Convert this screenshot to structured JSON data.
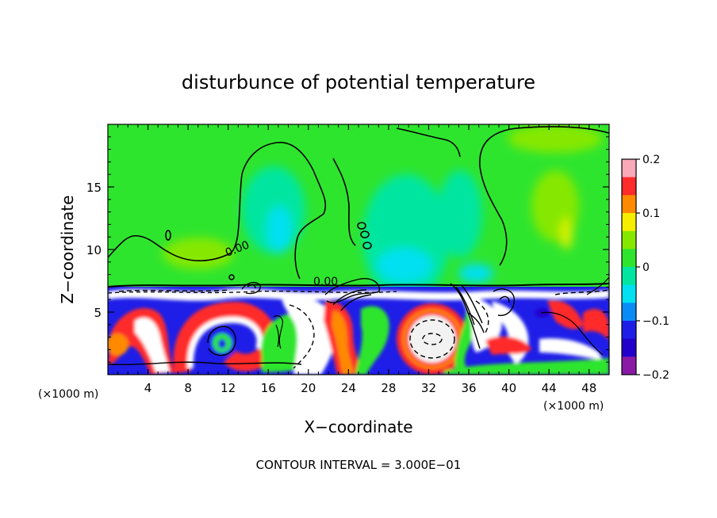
{
  "chart_data": {
    "type": "heatmap",
    "title": "disturbunce of potential temperature",
    "xlabel": "X−coordinate",
    "ylabel": "Z−coordinate",
    "x_unit": "(×1000 m)",
    "x_unit_right": "(×1000 m)",
    "xlim": [
      0,
      50
    ],
    "ylim": [
      0,
      20
    ],
    "x_ticks": [
      4,
      8,
      12,
      16,
      20,
      24,
      28,
      32,
      36,
      40,
      44,
      48
    ],
    "y_ticks": [
      5,
      10,
      15
    ],
    "contour_interval_text": "CONTOUR INTERVAL = 3.000E−01",
    "contour_labels": [
      {
        "text": "0.00",
        "x": 13,
        "z": 10.3
      },
      {
        "text": "0.00",
        "x": 22,
        "z": 7.4
      }
    ],
    "colorbar": {
      "min": -0.2,
      "max": 0.2,
      "tick_values": [
        0.2,
        0.1,
        0,
        -0.1,
        -0.2
      ],
      "tick_labels": [
        "0.2",
        "0.1",
        "0",
        "−0.1",
        "−0.2"
      ],
      "colors": [
        "#f9a9b8",
        "#ff2a2a",
        "#ff8a00",
        "#f5ee00",
        "#86e800",
        "#2ee52e",
        "#00e6a0",
        "#00e0f0",
        "#0a8cf6",
        "#1e1ee8",
        "#2200cc",
        "#8a1aa6"
      ]
    },
    "grid": false,
    "legend": "colorbar-right"
  }
}
